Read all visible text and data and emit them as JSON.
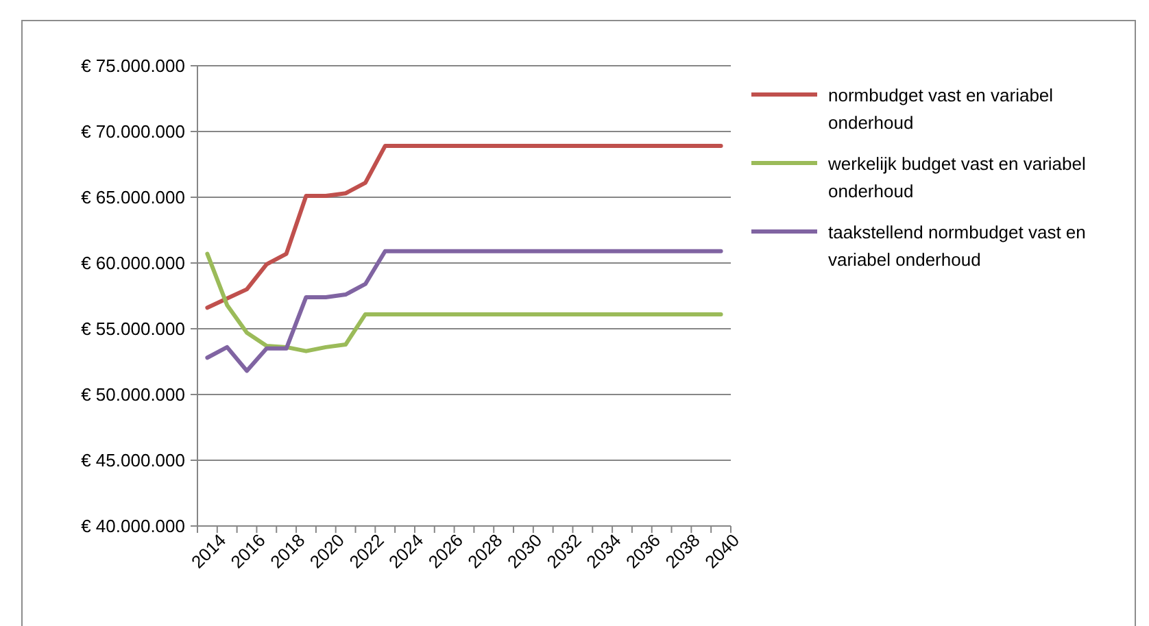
{
  "chart_data": {
    "type": "line",
    "categories": [
      "2014",
      null,
      "2016",
      null,
      "2018",
      null,
      "2020",
      null,
      "2022",
      null,
      "2024",
      null,
      "2026",
      null,
      "2028",
      null,
      "2030",
      null,
      "2032",
      null,
      "2034",
      null,
      "2036",
      null,
      "2038",
      null,
      "2040"
    ],
    "series": [
      {
        "name": "normbudget vast en variabel onderhoud",
        "color": "#c0504d",
        "values": [
          56600000,
          57300000,
          58000000,
          59900000,
          60700000,
          65100000,
          65100000,
          65300000,
          66100000,
          68900000,
          68900000,
          68900000,
          68900000,
          68900000,
          68900000,
          68900000,
          68900000,
          68900000,
          68900000,
          68900000,
          68900000,
          68900000,
          68900000,
          68900000,
          68900000,
          68900000,
          68900000
        ]
      },
      {
        "name": "werkelijk budget  vast  en variabel onderhoud",
        "color": "#9bbb59",
        "values": [
          60700000,
          56800000,
          54700000,
          53700000,
          53600000,
          53300000,
          53600000,
          53800000,
          56100000,
          56100000,
          56100000,
          56100000,
          56100000,
          56100000,
          56100000,
          56100000,
          56100000,
          56100000,
          56100000,
          56100000,
          56100000,
          56100000,
          56100000,
          56100000,
          56100000,
          56100000,
          56100000
        ]
      },
      {
        "name": "taakstellend normbudget vast en variabel onderhoud",
        "color": "#8064a2",
        "values": [
          52800000,
          53600000,
          51800000,
          53500000,
          53500000,
          57400000,
          57400000,
          57600000,
          58400000,
          60900000,
          60900000,
          60900000,
          60900000,
          60900000,
          60900000,
          60900000,
          60900000,
          60900000,
          60900000,
          60900000,
          60900000,
          60900000,
          60900000,
          60900000,
          60900000,
          60900000,
          60900000
        ]
      }
    ],
    "ylim": [
      40000000,
      75000000
    ],
    "yticks": [
      {
        "value": 40000000,
        "label": "€ 40.000.000"
      },
      {
        "value": 45000000,
        "label": "€ 45.000.000"
      },
      {
        "value": 50000000,
        "label": "€ 50.000.000"
      },
      {
        "value": 55000000,
        "label": "€ 55.000.000"
      },
      {
        "value": 60000000,
        "label": "€ 60.000.000"
      },
      {
        "value": 65000000,
        "label": "€ 65.000.000"
      },
      {
        "value": 70000000,
        "label": "€ 70.000.000"
      },
      {
        "value": 75000000,
        "label": "€ 75.000.000"
      }
    ],
    "grid": "y",
    "legend": "right",
    "marker": "none",
    "line_style": "solid"
  }
}
